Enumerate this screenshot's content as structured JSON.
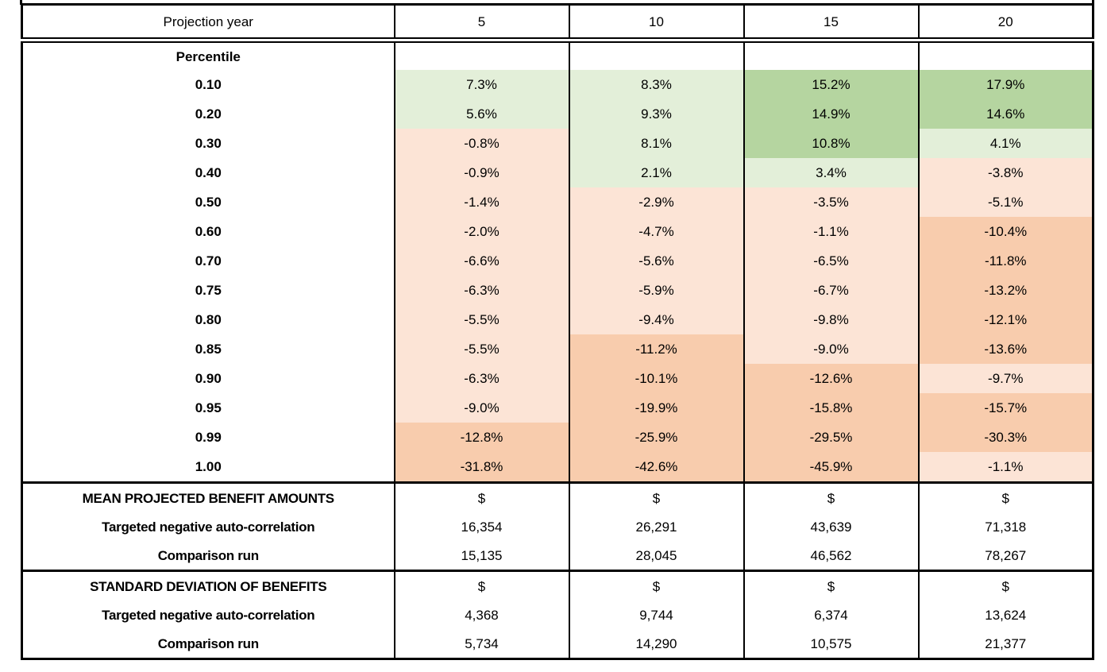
{
  "header": {
    "label": "Projection year",
    "years": [
      "5",
      "10",
      "15",
      "20"
    ]
  },
  "pct": {
    "title": "Percentile",
    "rows": [
      {
        "label": "0.10",
        "values": [
          "7.3%",
          "8.3%",
          "15.2%",
          "17.9%"
        ],
        "tones": [
          "green-light",
          "green-light",
          "green-dark",
          "green-dark"
        ]
      },
      {
        "label": "0.20",
        "values": [
          "5.6%",
          "9.3%",
          "14.9%",
          "14.6%"
        ],
        "tones": [
          "green-light",
          "green-light",
          "green-dark",
          "green-dark"
        ]
      },
      {
        "label": "0.30",
        "values": [
          "-0.8%",
          "8.1%",
          "10.8%",
          "4.1%"
        ],
        "tones": [
          "pink",
          "green-light",
          "green-dark",
          "green-light"
        ]
      },
      {
        "label": "0.40",
        "values": [
          "-0.9%",
          "2.1%",
          "3.4%",
          "-3.8%"
        ],
        "tones": [
          "pink",
          "green-light",
          "green-light",
          "pink"
        ]
      },
      {
        "label": "0.50",
        "values": [
          "-1.4%",
          "-2.9%",
          "-3.5%",
          "-5.1%"
        ],
        "tones": [
          "pink",
          "pink",
          "pink",
          "pink"
        ]
      },
      {
        "label": "0.60",
        "values": [
          "-2.0%",
          "-4.7%",
          "-1.1%",
          "-10.4%"
        ],
        "tones": [
          "pink",
          "pink",
          "pink",
          "orange"
        ]
      },
      {
        "label": "0.70",
        "values": [
          "-6.6%",
          "-5.6%",
          "-6.5%",
          "-11.8%"
        ],
        "tones": [
          "pink",
          "pink",
          "pink",
          "orange"
        ]
      },
      {
        "label": "0.75",
        "values": [
          "-6.3%",
          "-5.9%",
          "-6.7%",
          "-13.2%"
        ],
        "tones": [
          "pink",
          "pink",
          "pink",
          "orange"
        ]
      },
      {
        "label": "0.80",
        "values": [
          "-5.5%",
          "-9.4%",
          "-9.8%",
          "-12.1%"
        ],
        "tones": [
          "pink",
          "pink",
          "pink",
          "orange"
        ]
      },
      {
        "label": "0.85",
        "values": [
          "-5.5%",
          "-11.2%",
          "-9.0%",
          "-13.6%"
        ],
        "tones": [
          "pink",
          "orange",
          "pink",
          "orange"
        ]
      },
      {
        "label": "0.90",
        "values": [
          "-6.3%",
          "-10.1%",
          "-12.6%",
          "-9.7%"
        ],
        "tones": [
          "pink",
          "orange",
          "orange",
          "pink"
        ]
      },
      {
        "label": "0.95",
        "values": [
          "-9.0%",
          "-19.9%",
          "-15.8%",
          "-15.7%"
        ],
        "tones": [
          "pink",
          "orange",
          "orange",
          "orange"
        ]
      },
      {
        "label": "0.99",
        "values": [
          "-12.8%",
          "-25.9%",
          "-29.5%",
          "-30.3%"
        ],
        "tones": [
          "orange",
          "orange",
          "orange",
          "orange"
        ]
      },
      {
        "label": "1.00",
        "values": [
          "-31.8%",
          "-42.6%",
          "-45.9%",
          "-1.1%"
        ],
        "tones": [
          "orange",
          "orange",
          "orange",
          "pink"
        ]
      }
    ]
  },
  "mean": {
    "title": "MEAN PROJECTED BENEFIT AMOUNTS",
    "dollar_row": [
      "$",
      "$",
      "$",
      "$"
    ],
    "rows": [
      {
        "label": "Targeted negative auto-correlation",
        "values": [
          "16,354",
          "26,291",
          "43,639",
          "71,318"
        ]
      },
      {
        "label": "Comparison run",
        "values": [
          "15,135",
          "28,045",
          "46,562",
          "78,267"
        ]
      }
    ]
  },
  "std": {
    "title": "STANDARD DEVIATION OF BENEFITS",
    "dollar_row": [
      "$",
      "$",
      "$",
      "$"
    ],
    "rows": [
      {
        "label": "Targeted negative auto-correlation",
        "values": [
          "4,368",
          "9,744",
          "6,374",
          "13,624"
        ]
      },
      {
        "label": "Comparison run",
        "values": [
          "5,734",
          "14,290",
          "10,575",
          "21,377"
        ]
      }
    ]
  },
  "palette": {
    "green_dark": "#b5d5a0",
    "green_light": "#e3efd9",
    "pink_light": "#fce4d6",
    "orange": "#f8ccad",
    "border": "#000000",
    "background": "#ffffff"
  },
  "chart_data": [
    {
      "type": "heatmap",
      "title": "Projection year percentile returns",
      "xlabel": "Projection year",
      "ylabel": "Percentile",
      "columns": [
        5,
        10,
        15,
        20
      ],
      "rows": [
        0.1,
        0.2,
        0.3,
        0.4,
        0.5,
        0.6,
        0.7,
        0.75,
        0.8,
        0.85,
        0.9,
        0.95,
        0.99,
        1.0
      ],
      "series": [
        {
          "name": "5",
          "values_percent": [
            7.3,
            5.6,
            -0.8,
            -0.9,
            -1.4,
            -2.0,
            -6.6,
            -6.3,
            -5.5,
            -5.5,
            -6.3,
            -9.0,
            -12.8,
            -31.8
          ]
        },
        {
          "name": "10",
          "values_percent": [
            8.3,
            9.3,
            8.1,
            2.1,
            -2.9,
            -4.7,
            -5.6,
            -5.9,
            -9.4,
            -11.2,
            -10.1,
            -19.9,
            -25.9,
            -42.6
          ]
        },
        {
          "name": "15",
          "values_percent": [
            15.2,
            14.9,
            10.8,
            3.4,
            -3.5,
            -1.1,
            -6.5,
            -6.7,
            -9.8,
            -9.0,
            -12.6,
            -15.8,
            -29.5,
            -45.9
          ]
        },
        {
          "name": "20",
          "values_percent": [
            17.9,
            14.6,
            4.1,
            -3.8,
            -5.1,
            -10.4,
            -11.8,
            -13.2,
            -12.1,
            -13.6,
            -9.7,
            -15.7,
            -30.3,
            -1.1
          ]
        }
      ],
      "color_rule": "value >= 10 dark green; 0 to 10 light green; -10 to 0 light pink; <= -10 orange"
    },
    {
      "type": "table",
      "title": "MEAN PROJECTED BENEFIT AMOUNTS ($)",
      "categories": [
        5,
        10,
        15,
        20
      ],
      "series": [
        {
          "name": "Targeted negative auto-correlation",
          "values": [
            16354,
            26291,
            43639,
            71318
          ]
        },
        {
          "name": "Comparison run",
          "values": [
            15135,
            28045,
            46562,
            78267
          ]
        }
      ]
    },
    {
      "type": "table",
      "title": "STANDARD DEVIATION OF BENEFITS ($)",
      "categories": [
        5,
        10,
        15,
        20
      ],
      "series": [
        {
          "name": "Targeted negative auto-correlation",
          "values": [
            4368,
            9744,
            6374,
            13624
          ]
        },
        {
          "name": "Comparison run",
          "values": [
            5734,
            14290,
            10575,
            21377
          ]
        }
      ]
    }
  ]
}
